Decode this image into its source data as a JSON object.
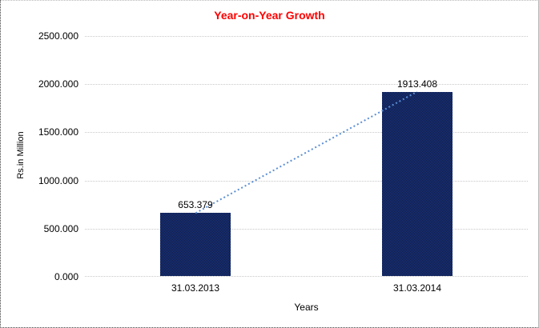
{
  "chart_data": {
    "type": "bar",
    "title": "Year-on-Year Growth",
    "title_color": "#ff0000",
    "xlabel": "Years",
    "ylabel": "Rs.in Million",
    "categories": [
      "31.03.2013",
      "31.03.2014"
    ],
    "values": [
      653.379,
      1913.408
    ],
    "value_labels": [
      "653.379",
      "1913.408"
    ],
    "series": [
      {
        "name": "Year-on-Year Growth",
        "values": [
          653.379,
          1913.408
        ]
      }
    ],
    "ylim": [
      0,
      2500
    ],
    "yticks": [
      0,
      500,
      1000,
      1500,
      2000,
      2500
    ],
    "ytick_labels": [
      "0.000",
      "500.000",
      "1000.000",
      "1500.000",
      "2000.000",
      "2500.000"
    ],
    "grid": "dotted horizontal gridlines at each y tick",
    "gridline_color": "#c8c8c8",
    "bar_color": "#17365d",
    "bar_pattern_colors": [
      "#1f3f94",
      "#0a102e"
    ],
    "trendline": {
      "type": "dotted",
      "color": "#5b8fd4",
      "from_value": 653.379,
      "to_value": 1913.408
    },
    "legend": "none"
  }
}
